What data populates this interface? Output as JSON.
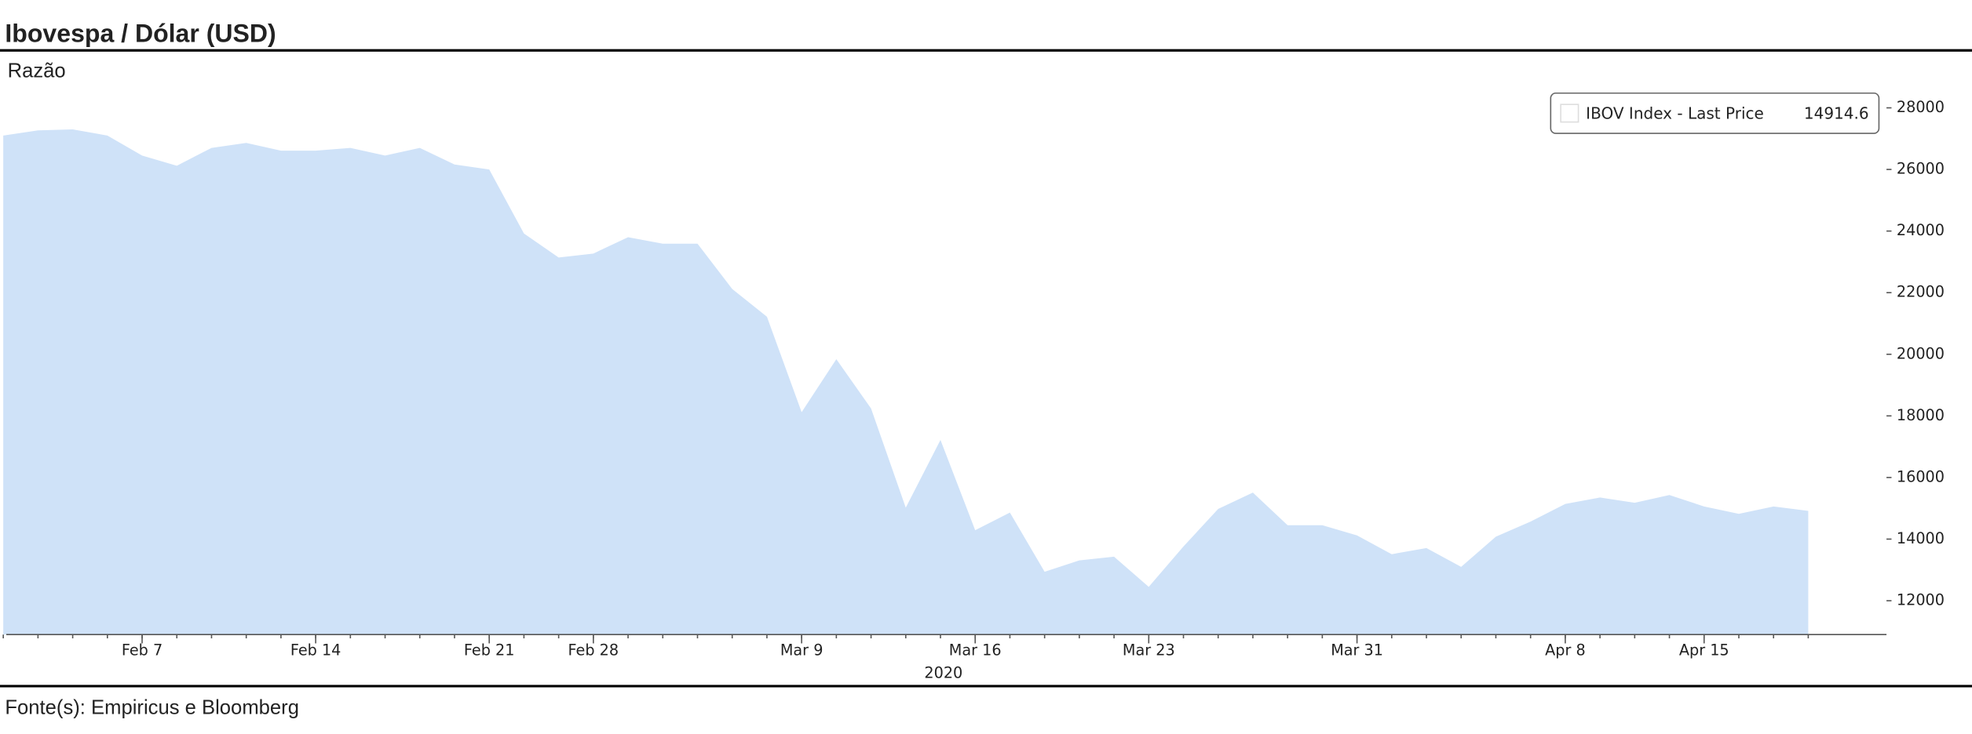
{
  "chart_data": {
    "type": "area",
    "title": "Ibovespa / Dólar (USD)",
    "subtitle": "Razão",
    "source": "Fonte(s): Empiricus e Bloomberg",
    "xlabel": "2020",
    "x": [
      "2020-02-03",
      "2020-02-04",
      "2020-02-05",
      "2020-02-06",
      "2020-02-07",
      "2020-02-10",
      "2020-02-11",
      "2020-02-12",
      "2020-02-13",
      "2020-02-14",
      "2020-02-17",
      "2020-02-18",
      "2020-02-19",
      "2020-02-20",
      "2020-02-21",
      "2020-02-26",
      "2020-02-27",
      "2020-02-28",
      "2020-03-02",
      "2020-03-03",
      "2020-03-04",
      "2020-03-05",
      "2020-03-06",
      "2020-03-09",
      "2020-03-10",
      "2020-03-11",
      "2020-03-12",
      "2020-03-13",
      "2020-03-16",
      "2020-03-17",
      "2020-03-18",
      "2020-03-19",
      "2020-03-20",
      "2020-03-23",
      "2020-03-24",
      "2020-03-25",
      "2020-03-26",
      "2020-03-27",
      "2020-03-30",
      "2020-03-31",
      "2020-04-01",
      "2020-04-02",
      "2020-04-03",
      "2020-04-06",
      "2020-04-07",
      "2020-04-08",
      "2020-04-09",
      "2020-04-13",
      "2020-04-14",
      "2020-04-15",
      "2020-04-16",
      "2020-04-17",
      "2020-04-20"
    ],
    "series": [
      {
        "name": "IBOV Index - Last Price",
        "color": "#cfe2f8",
        "values": [
          27100,
          27270,
          27300,
          27100,
          26450,
          26120,
          26700,
          26860,
          26610,
          26610,
          26700,
          26450,
          26700,
          26160,
          26000,
          23920,
          23140,
          23270,
          23800,
          23590,
          23590,
          22120,
          21220,
          18120,
          19840,
          18240,
          15020,
          17220,
          14290,
          14860,
          12940,
          13310,
          13430,
          12450,
          13760,
          14980,
          15510,
          14450,
          14450,
          14120,
          13510,
          13710,
          13100,
          14080,
          14570,
          15140,
          15350,
          15180,
          15430,
          15060,
          14820,
          15060,
          14914.6
        ]
      }
    ],
    "xticks": [
      {
        "value": "2020-02-07",
        "label": "Feb 7"
      },
      {
        "value": "2020-02-14",
        "label": "Feb 14"
      },
      {
        "value": "2020-02-21",
        "label": "Feb 21"
      },
      {
        "value": "2020-02-28",
        "label": "Feb 28"
      },
      {
        "value": "2020-03-09",
        "label": "Mar 9"
      },
      {
        "value": "2020-03-16",
        "label": "Mar 16"
      },
      {
        "value": "2020-03-23",
        "label": "Mar 23"
      },
      {
        "value": "2020-03-31",
        "label": "Mar 31"
      },
      {
        "value": "2020-04-08",
        "label": "Apr 8"
      },
      {
        "value": "2020-04-15",
        "label": "Apr 15"
      }
    ],
    "ylim": [
      10900,
      28600
    ],
    "yticks": [
      12000,
      14000,
      16000,
      18000,
      20000,
      22000,
      24000,
      26000,
      28000
    ],
    "y_axis_side": "right",
    "legend": "upper right",
    "grid": false
  }
}
